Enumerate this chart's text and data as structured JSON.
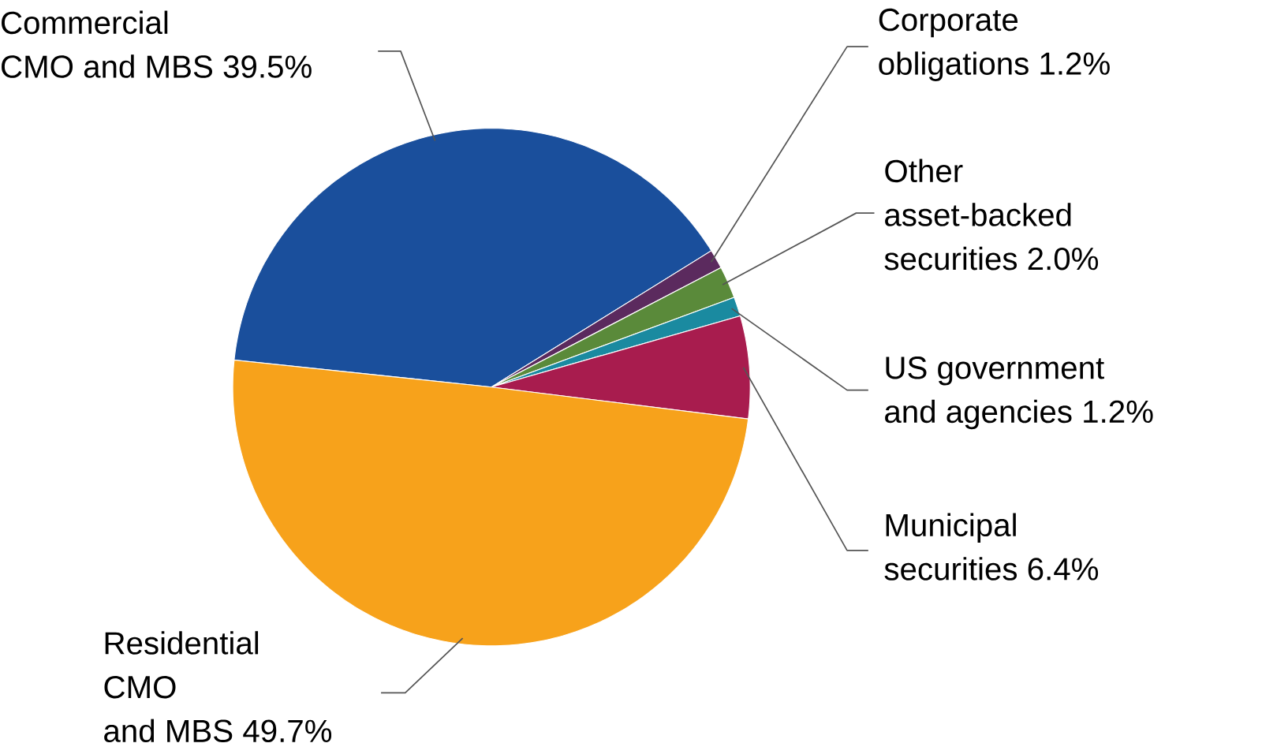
{
  "chart_data": {
    "type": "pie",
    "categories": [
      "Commercial CMO and MBS 39.5%",
      "Corporate obligations 1.2%",
      "Other asset-backed securities 2.0%",
      "US government and agencies 1.2%",
      "Municipal securities 6.4%",
      "Residential CMO and MBS 49.7%"
    ],
    "values": [
      39.5,
      1.2,
      2.0,
      1.2,
      6.4,
      49.7
    ],
    "colors": [
      "#1a4f9c",
      "#5b2a5e",
      "#5a8a3a",
      "#1a8aa0",
      "#a81c4e",
      "#f7a21b"
    ]
  }
}
